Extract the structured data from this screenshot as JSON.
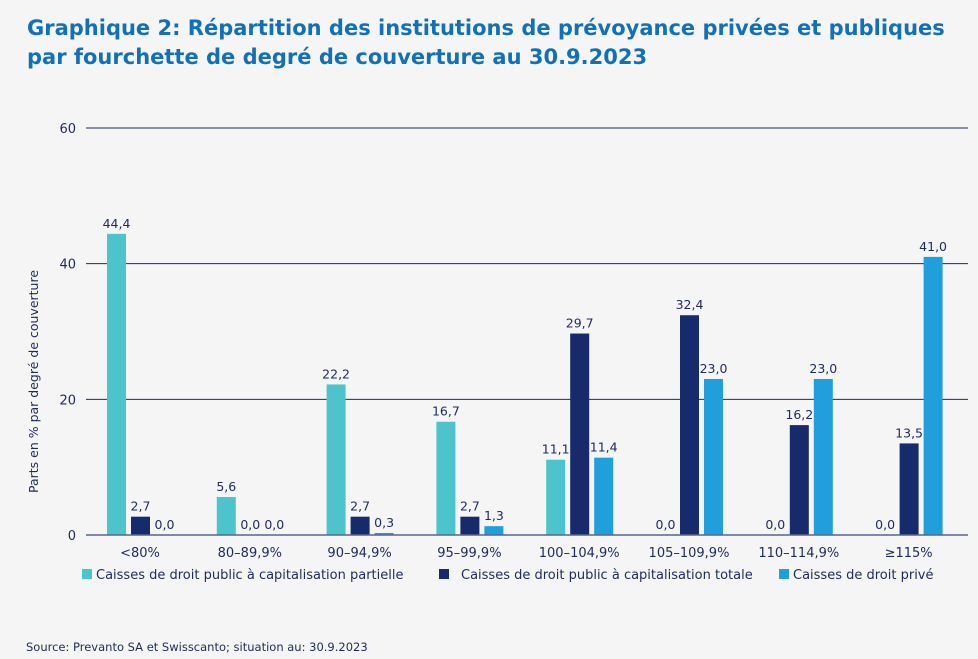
{
  "chart_data": {
    "type": "bar",
    "title_line1": "Graphique 2: Répartition des institutions de prévoyance privées et publiques",
    "title_line2": "par fourchette de degré de couverture au 30.9.2023",
    "ylabel": "Parts en % par degré de couverture",
    "xlabel": "",
    "ylim": [
      0,
      60
    ],
    "yticks": [
      0,
      20,
      40,
      60
    ],
    "grid": true,
    "legend_position": "bottom",
    "categories": [
      "<80%",
      "80–89,9%",
      "90–94,9%",
      "95–99,9%",
      "100–104,9%",
      "105–109,9%",
      "110–114,9%",
      "≥115%"
    ],
    "series": [
      {
        "name": "Caisses de droit public à capitalisation partielle",
        "color": "#4dc4cb",
        "values": [
          44.4,
          5.6,
          22.2,
          16.7,
          11.1,
          0.0,
          0.0,
          0.0
        ],
        "labels": [
          "44,4",
          "5,6",
          "22,2",
          "16,7",
          "11,1",
          "0,0",
          "0,0",
          "0,0"
        ]
      },
      {
        "name": "Caisses de droit public à capitalisation totale",
        "color": "#172a6b",
        "values": [
          2.7,
          0.0,
          2.7,
          2.7,
          29.7,
          32.4,
          16.2,
          13.5
        ],
        "labels": [
          "2,7",
          "0,0",
          "2,7",
          "2,7",
          "29,7",
          "32,4",
          "16,2",
          "13,5"
        ]
      },
      {
        "name": "Caisses de droit privé",
        "color": "#219fdc",
        "values": [
          0.0,
          0.0,
          0.3,
          1.3,
          11.4,
          23.0,
          23.0,
          41.0
        ],
        "labels": [
          "0,0",
          "0,0",
          "0,3",
          "1,3",
          "11,4",
          "23,0",
          "23,0",
          "41,0"
        ]
      }
    ],
    "source": "Source: Prevanto SA et Swisscanto; situation au: 30.9.2023"
  }
}
